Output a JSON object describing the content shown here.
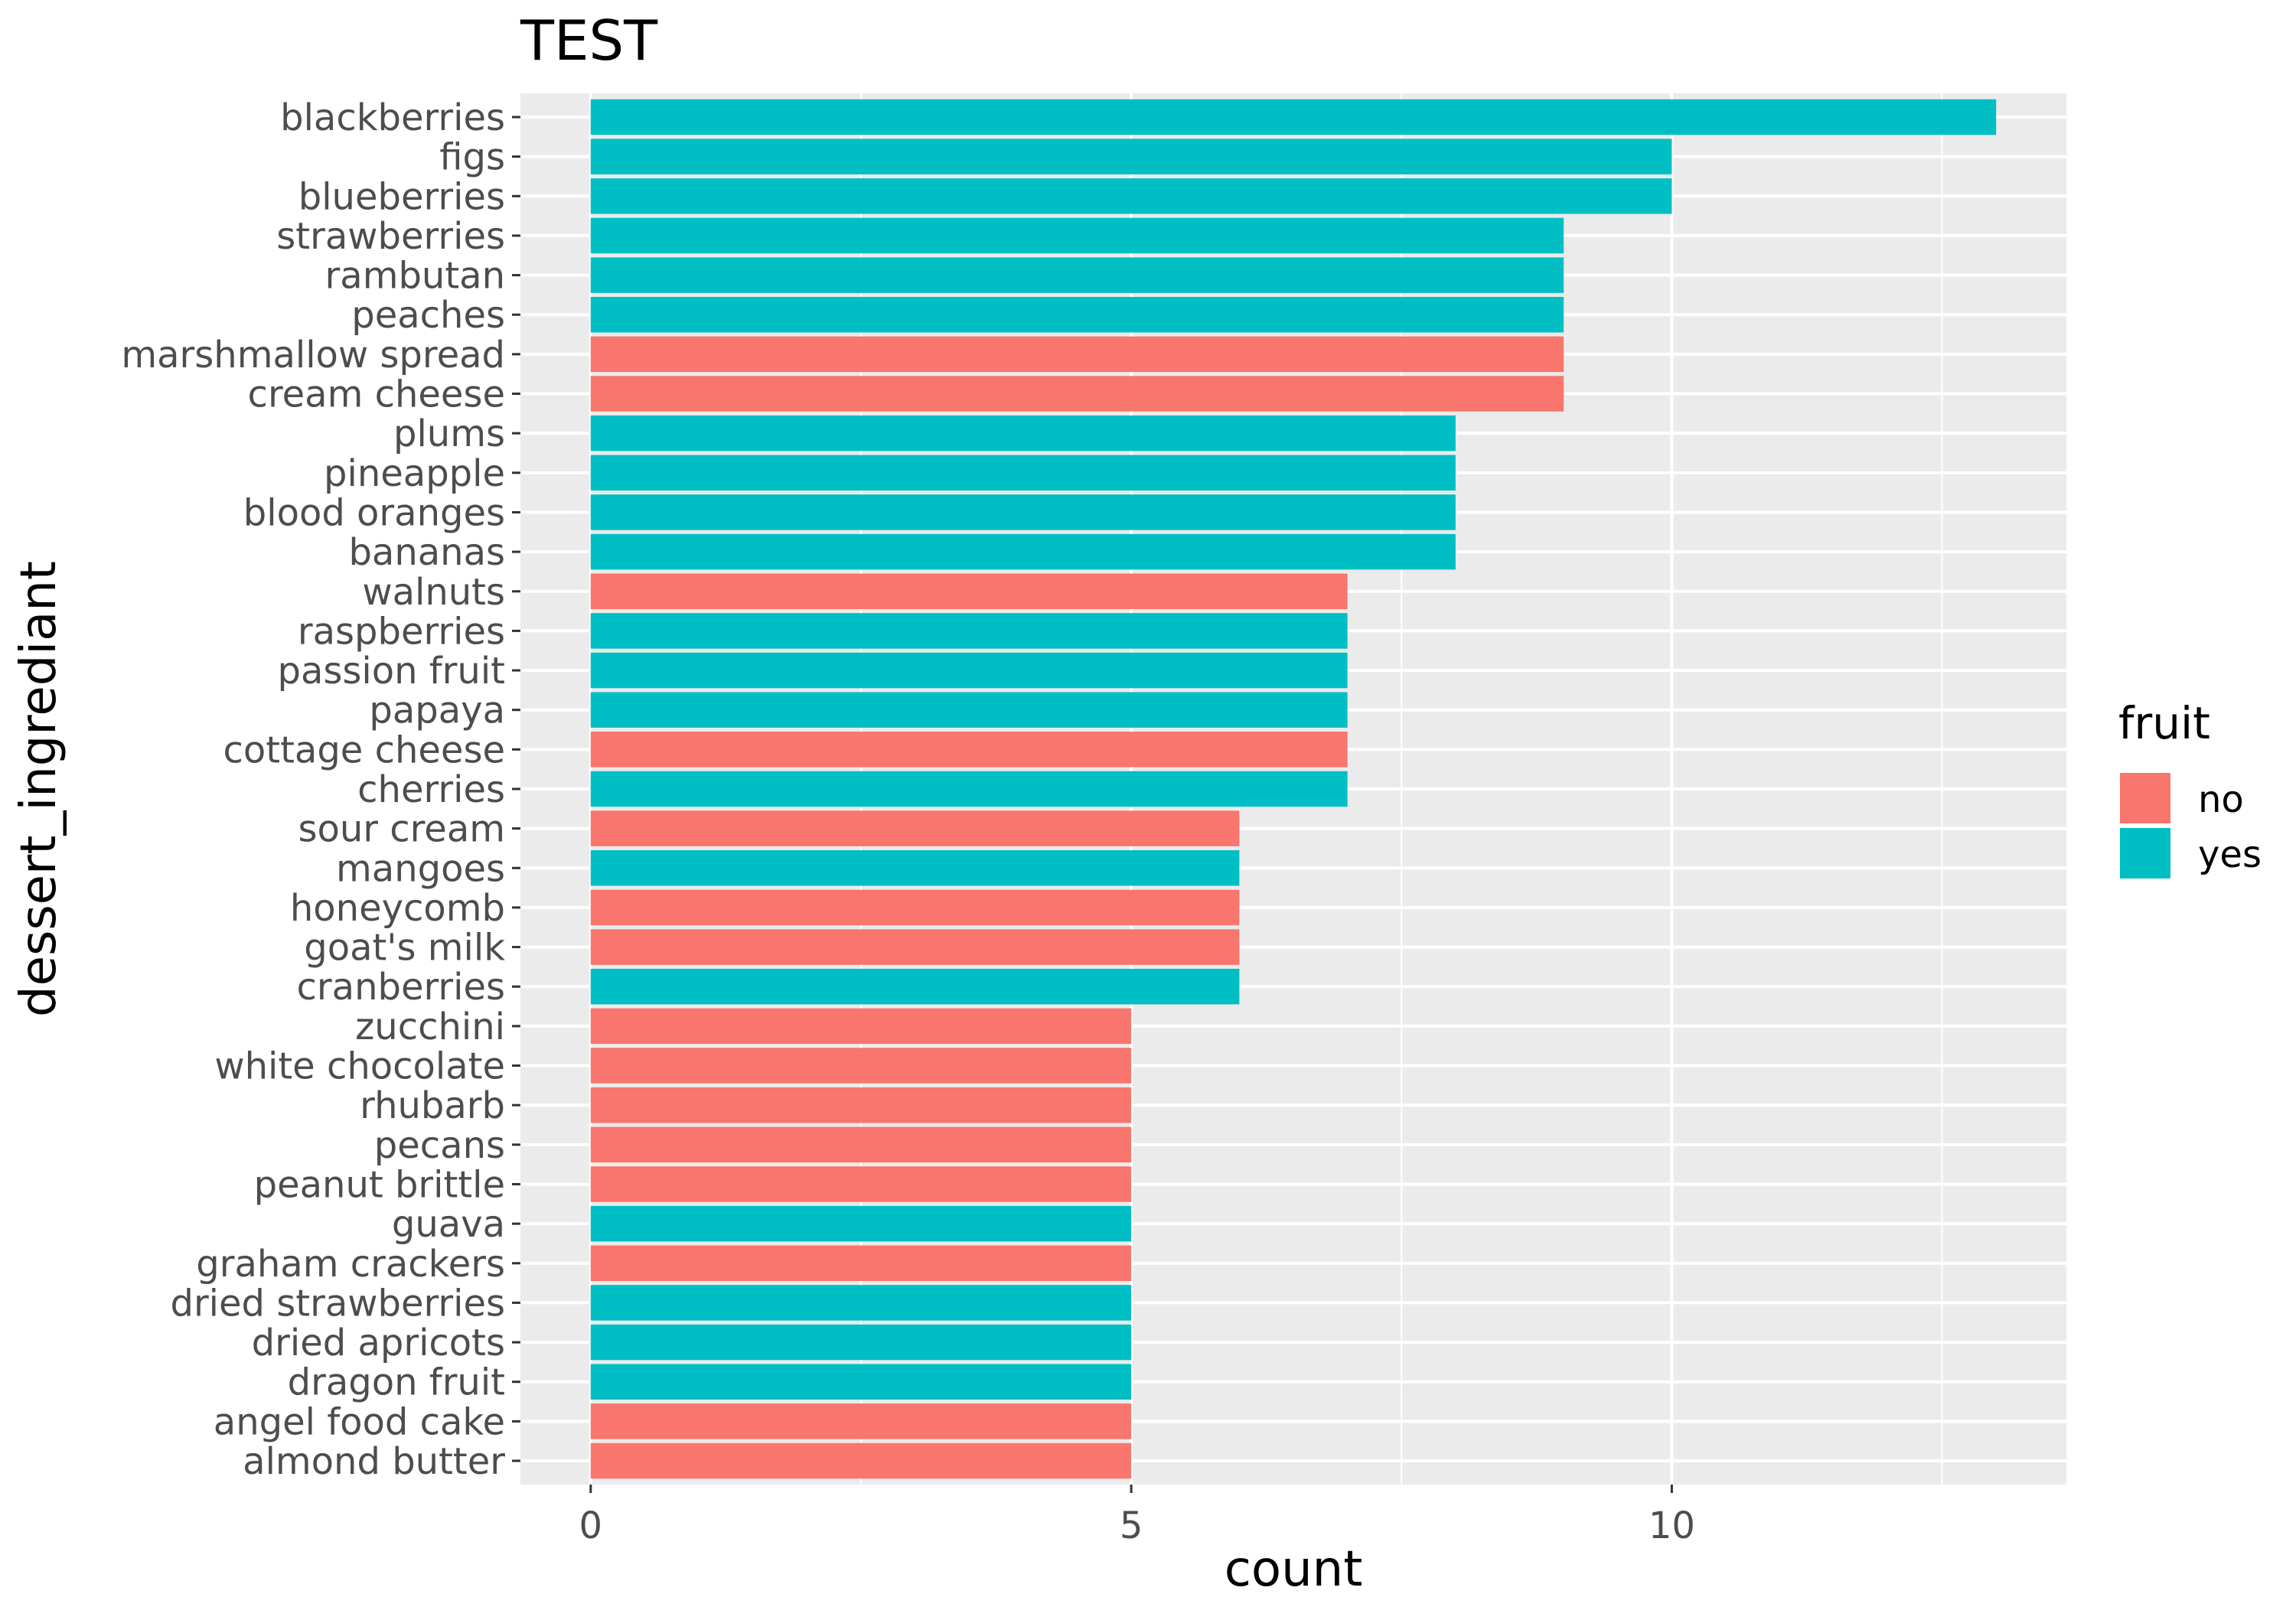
{
  "chart_data": {
    "type": "bar",
    "orientation": "horizontal",
    "title": "TEST",
    "xlabel": "count",
    "ylabel": "dessert_ingrediant",
    "xlim": [
      -0.65,
      13.65
    ],
    "x_ticks": [
      0,
      5,
      10
    ],
    "grid": true,
    "legend": {
      "title": "fruit",
      "position": "right",
      "entries": [
        {
          "label": "no",
          "color": "#F8766D"
        },
        {
          "label": "yes",
          "color": "#00BFC4"
        }
      ]
    },
    "categories": [
      "blackberries",
      "figs",
      "blueberries",
      "strawberries",
      "rambutan",
      "peaches",
      "marshmallow spread",
      "cream cheese",
      "plums",
      "pineapple",
      "blood oranges",
      "bananas",
      "walnuts",
      "raspberries",
      "passion fruit",
      "papaya",
      "cottage cheese",
      "cherries",
      "sour cream",
      "mangoes",
      "honeycomb",
      "goat's milk",
      "cranberries",
      "zucchini",
      "white chocolate",
      "rhubarb",
      "pecans",
      "peanut brittle",
      "guava",
      "graham crackers",
      "dried strawberries",
      "dried apricots",
      "dragon fruit",
      "angel food cake",
      "almond butter"
    ],
    "values": [
      13,
      10,
      10,
      9,
      9,
      9,
      9,
      9,
      8,
      8,
      8,
      8,
      7,
      7,
      7,
      7,
      7,
      7,
      6,
      6,
      6,
      6,
      6,
      5,
      5,
      5,
      5,
      5,
      5,
      5,
      5,
      5,
      5,
      5,
      5
    ],
    "fruit": [
      "yes",
      "yes",
      "yes",
      "yes",
      "yes",
      "yes",
      "no",
      "no",
      "yes",
      "yes",
      "yes",
      "yes",
      "no",
      "yes",
      "yes",
      "yes",
      "no",
      "yes",
      "no",
      "yes",
      "no",
      "no",
      "yes",
      "no",
      "no",
      "no",
      "no",
      "no",
      "yes",
      "no",
      "yes",
      "yes",
      "yes",
      "no",
      "no"
    ]
  },
  "colors": {
    "panel_background": "#EBEBEB",
    "grid_major": "#FFFFFF",
    "no": "#F8766D",
    "yes": "#00BFC4"
  }
}
